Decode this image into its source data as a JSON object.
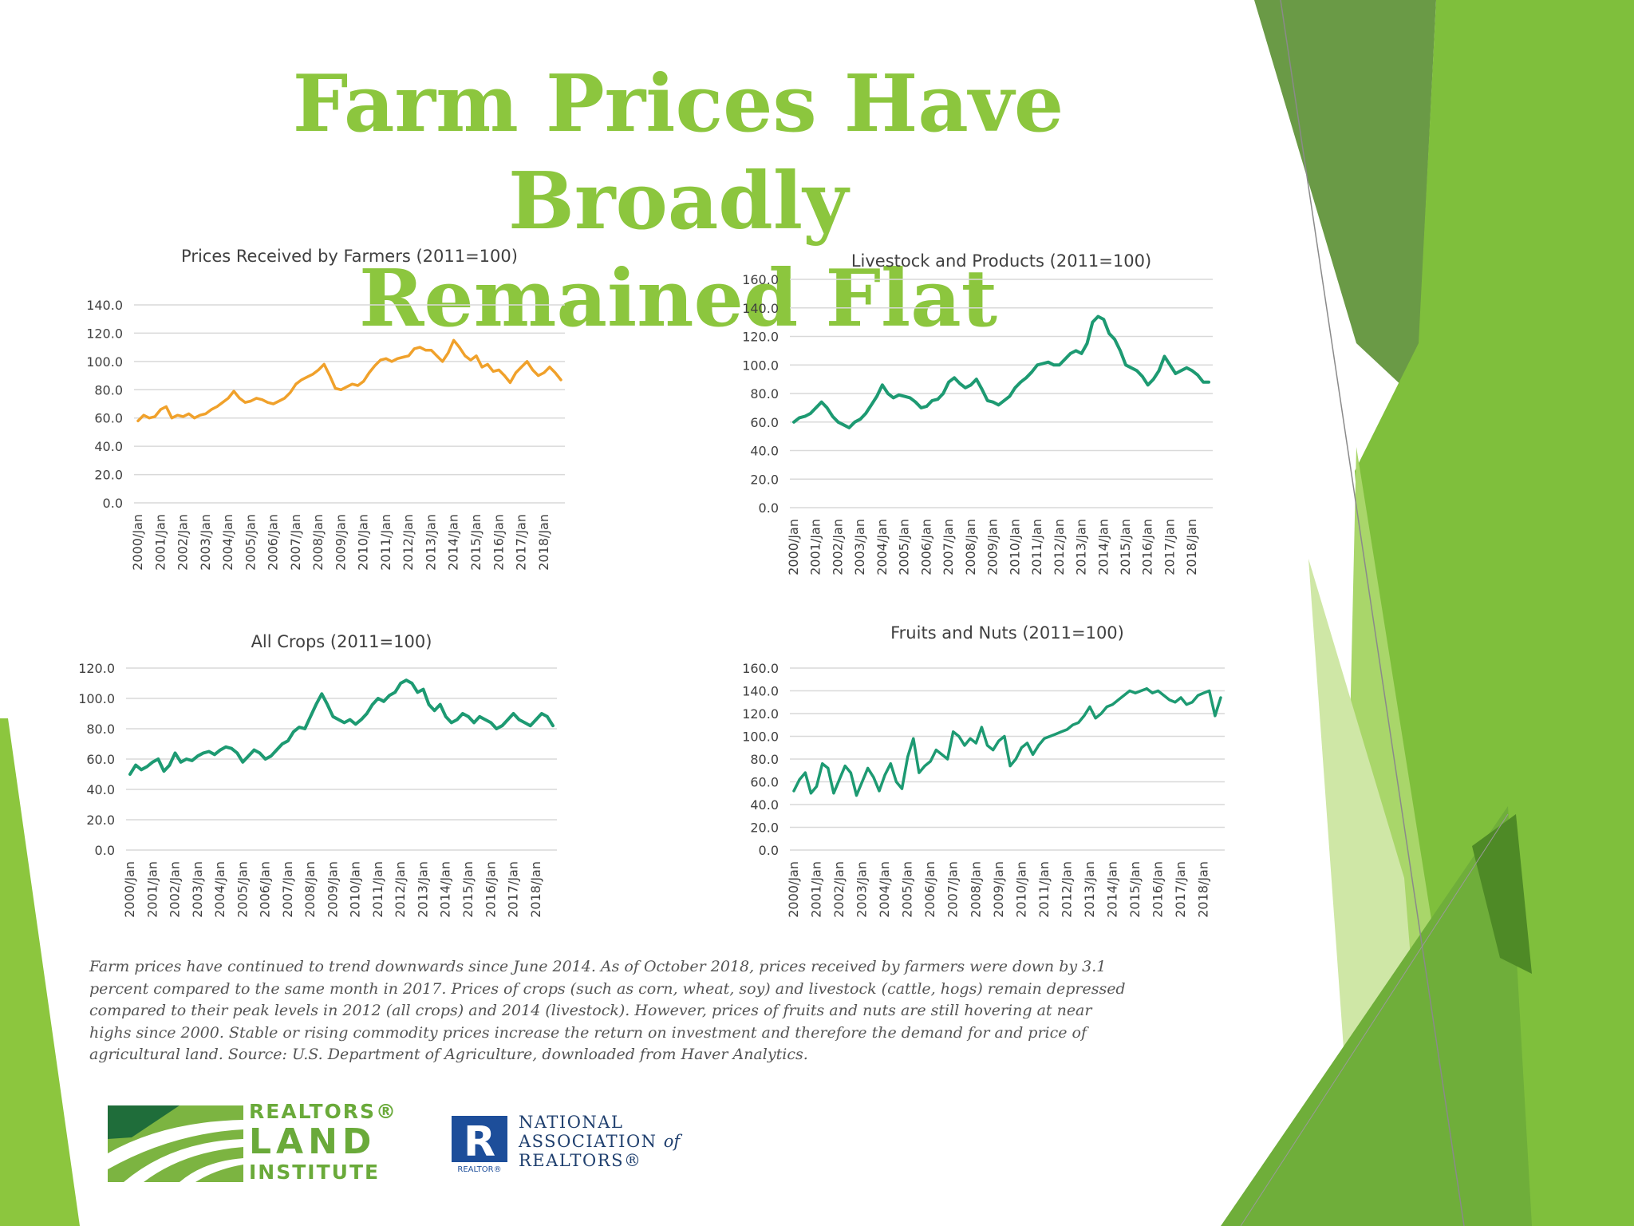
{
  "slide": {
    "title_line1": "Farm Prices Have Broadly",
    "title_line2": "Remained Flat",
    "caption": "Farm prices have continued to trend downwards since June 2014. As of October 2018, prices received by farmers were down by 3.1 percent compared to the same  month in 2017. Prices of crops (such as corn, wheat, soy) and livestock (cattle, hogs) remain depressed compared to their peak levels in 2012 (all crops) and 2014  (livestock). However, prices of fruits and nuts are still hovering at near highs since 2000. Stable or rising commodity prices increase the return on investment and  therefore the demand for and price of agricultural land. Source:  U.S. Department of Agriculture, downloaded from Haver Analytics.",
    "logo_rli": {
      "line1": "REALTORS®",
      "line2": "LAND",
      "line3": "INSTITUTE"
    },
    "logo_nar": {
      "mark": "R",
      "mark_caption": "REALTOR®",
      "line1": "NATIONAL",
      "line2": "ASSOCIATION",
      "line2_suffix": "of",
      "line3": "REALTORS®"
    },
    "colors": {
      "title": "#8cc63e",
      "orange_series": "#f0a12b",
      "green_series": "#1d9a72",
      "caption": "#555555"
    }
  },
  "chart_data": [
    {
      "type": "line",
      "title": "Prices Received by Farmers (2011=100)",
      "color": "#f0a12b",
      "ylim": [
        0,
        140
      ],
      "yticks": [
        "0.0",
        "20.0",
        "40.0",
        "60.0",
        "80.0",
        "100.0",
        "120.0",
        "140.0"
      ],
      "x_tick_labels": [
        "2000/Jan",
        "2001/Jan",
        "2002/Jan",
        "2003/Jan",
        "2004/Jan",
        "2005/Jan",
        "2006/Jan",
        "2007/Jan",
        "2008/Jan",
        "2009/Jan",
        "2010/Jan",
        "2011/Jan",
        "2012/Jan",
        "2013/Jan",
        "2014/Jan",
        "2015/Jan",
        "2016/Jan",
        "2017/Jan",
        "2018/Jan"
      ],
      "grid": true,
      "x": [
        2000.0,
        2000.25,
        2000.5,
        2000.75,
        2001.0,
        2001.25,
        2001.5,
        2001.75,
        2002.0,
        2002.25,
        2002.5,
        2002.75,
        2003.0,
        2003.25,
        2003.5,
        2003.75,
        2004.0,
        2004.25,
        2004.5,
        2004.75,
        2005.0,
        2005.25,
        2005.5,
        2005.75,
        2006.0,
        2006.25,
        2006.5,
        2006.75,
        2007.0,
        2007.25,
        2007.5,
        2007.75,
        2008.0,
        2008.25,
        2008.5,
        2008.75,
        2009.0,
        2009.25,
        2009.5,
        2009.75,
        2010.0,
        2010.25,
        2010.5,
        2010.75,
        2011.0,
        2011.25,
        2011.5,
        2011.75,
        2012.0,
        2012.25,
        2012.5,
        2012.75,
        2013.0,
        2013.25,
        2013.5,
        2013.75,
        2014.0,
        2014.25,
        2014.5,
        2014.75,
        2015.0,
        2015.25,
        2015.5,
        2015.75,
        2016.0,
        2016.25,
        2016.5,
        2016.75,
        2017.0,
        2017.25,
        2017.5,
        2017.75,
        2018.0,
        2018.25,
        2018.5,
        2018.75
      ],
      "values": [
        58,
        62,
        60,
        61,
        66,
        68,
        60,
        62,
        61,
        63,
        60,
        62,
        63,
        66,
        68,
        71,
        74,
        79,
        74,
        71,
        72,
        74,
        73,
        71,
        70,
        72,
        74,
        78,
        84,
        87,
        89,
        91,
        94,
        98,
        90,
        81,
        80,
        82,
        84,
        83,
        86,
        92,
        97,
        101,
        102,
        100,
        102,
        103,
        104,
        109,
        110,
        108,
        108,
        104,
        100,
        106,
        115,
        110,
        104,
        101,
        104,
        96,
        98,
        93,
        94,
        90,
        85,
        92,
        96,
        100,
        94,
        90,
        92,
        96,
        92,
        87
      ]
    },
    {
      "type": "line",
      "title": "Livestock and Products (2011=100)",
      "color": "#1d9a72",
      "ylim": [
        0,
        160
      ],
      "yticks": [
        "0.0",
        "20.0",
        "40.0",
        "60.0",
        "80.0",
        "100.0",
        "120.0",
        "140.0",
        "160.0"
      ],
      "x_tick_labels": [
        "2000/Jan",
        "2001/Jan",
        "2002/Jan",
        "2003/Jan",
        "2004/Jan",
        "2005/Jan",
        "2006/Jan",
        "2007/Jan",
        "2008/Jan",
        "2009/Jan",
        "2010/Jan",
        "2011/Jan",
        "2012/Jan",
        "2013/Jan",
        "2014/Jan",
        "2015/Jan",
        "2016/Jan",
        "2017/Jan",
        "2018/Jan"
      ],
      "grid": true,
      "x": [
        2000.0,
        2000.25,
        2000.5,
        2000.75,
        2001.0,
        2001.25,
        2001.5,
        2001.75,
        2002.0,
        2002.25,
        2002.5,
        2002.75,
        2003.0,
        2003.25,
        2003.5,
        2003.75,
        2004.0,
        2004.25,
        2004.5,
        2004.75,
        2005.0,
        2005.25,
        2005.5,
        2005.75,
        2006.0,
        2006.25,
        2006.5,
        2006.75,
        2007.0,
        2007.25,
        2007.5,
        2007.75,
        2008.0,
        2008.25,
        2008.5,
        2008.75,
        2009.0,
        2009.25,
        2009.5,
        2009.75,
        2010.0,
        2010.25,
        2010.5,
        2010.75,
        2011.0,
        2011.25,
        2011.5,
        2011.75,
        2012.0,
        2012.25,
        2012.5,
        2012.75,
        2013.0,
        2013.25,
        2013.5,
        2013.75,
        2014.0,
        2014.25,
        2014.5,
        2014.75,
        2015.0,
        2015.25,
        2015.5,
        2015.75,
        2016.0,
        2016.25,
        2016.5,
        2016.75,
        2017.0,
        2017.25,
        2017.5,
        2017.75,
        2018.0,
        2018.25,
        2018.5,
        2018.75
      ],
      "values": [
        60,
        63,
        64,
        66,
        70,
        74,
        70,
        64,
        60,
        58,
        56,
        60,
        62,
        66,
        72,
        78,
        86,
        80,
        77,
        79,
        78,
        77,
        74,
        70,
        71,
        75,
        76,
        80,
        88,
        91,
        87,
        84,
        86,
        90,
        83,
        75,
        74,
        72,
        75,
        78,
        84,
        88,
        91,
        95,
        100,
        101,
        102,
        100,
        100,
        104,
        108,
        110,
        108,
        115,
        130,
        134,
        132,
        122,
        118,
        110,
        100,
        98,
        96,
        92,
        86,
        90,
        96,
        106,
        100,
        94,
        96,
        98,
        96,
        93,
        88,
        88
      ]
    },
    {
      "type": "line",
      "title": "All Crops (2011=100)",
      "color": "#1d9a72",
      "ylim": [
        0,
        120
      ],
      "yticks": [
        "0.0",
        "20.0",
        "40.0",
        "60.0",
        "80.0",
        "100.0",
        "120.0"
      ],
      "x_tick_labels": [
        "2000/Jan",
        "2001/Jan",
        "2002/Jan",
        "2003/Jan",
        "2004/Jan",
        "2005/Jan",
        "2006/Jan",
        "2007/Jan",
        "2008/Jan",
        "2009/Jan",
        "2010/Jan",
        "2011/Jan",
        "2012/Jan",
        "2013/Jan",
        "2014/Jan",
        "2015/Jan",
        "2016/Jan",
        "2017/Jan",
        "2018/Jan"
      ],
      "grid": true,
      "x": [
        2000.0,
        2000.25,
        2000.5,
        2000.75,
        2001.0,
        2001.25,
        2001.5,
        2001.75,
        2002.0,
        2002.25,
        2002.5,
        2002.75,
        2003.0,
        2003.25,
        2003.5,
        2003.75,
        2004.0,
        2004.25,
        2004.5,
        2004.75,
        2005.0,
        2005.25,
        2005.5,
        2005.75,
        2006.0,
        2006.25,
        2006.5,
        2006.75,
        2007.0,
        2007.25,
        2007.5,
        2007.75,
        2008.0,
        2008.25,
        2008.5,
        2008.75,
        2009.0,
        2009.25,
        2009.5,
        2009.75,
        2010.0,
        2010.25,
        2010.5,
        2010.75,
        2011.0,
        2011.25,
        2011.5,
        2011.75,
        2012.0,
        2012.25,
        2012.5,
        2012.75,
        2013.0,
        2013.25,
        2013.5,
        2013.75,
        2014.0,
        2014.25,
        2014.5,
        2014.75,
        2015.0,
        2015.25,
        2015.5,
        2015.75,
        2016.0,
        2016.25,
        2016.5,
        2016.75,
        2017.0,
        2017.25,
        2017.5,
        2017.75,
        2018.0,
        2018.25,
        2018.5,
        2018.75
      ],
      "values": [
        50,
        56,
        53,
        55,
        58,
        60,
        52,
        56,
        64,
        58,
        60,
        59,
        62,
        64,
        65,
        63,
        66,
        68,
        67,
        64,
        58,
        62,
        66,
        64,
        60,
        62,
        66,
        70,
        72,
        78,
        81,
        80,
        88,
        96,
        103,
        96,
        88,
        86,
        84,
        86,
        83,
        86,
        90,
        96,
        100,
        98,
        102,
        104,
        110,
        112,
        110,
        104,
        106,
        96,
        92,
        96,
        88,
        84,
        86,
        90,
        88,
        84,
        88,
        86,
        84,
        80,
        82,
        86,
        90,
        86,
        84,
        82,
        86,
        90,
        88,
        82
      ]
    },
    {
      "type": "line",
      "title": "Fruits and Nuts (2011=100)",
      "color": "#1d9a72",
      "ylim": [
        0,
        160
      ],
      "yticks": [
        "0.0",
        "20.0",
        "40.0",
        "60.0",
        "80.0",
        "100.0",
        "120.0",
        "140.0",
        "160.0"
      ],
      "x_tick_labels": [
        "2000/Jan",
        "2001/Jan",
        "2002/Jan",
        "2003/Jan",
        "2004/Jan",
        "2005/Jan",
        "2006/Jan",
        "2007/Jan",
        "2008/Jan",
        "2009/Jan",
        "2010/Jan",
        "2011/Jan",
        "2012/Jan",
        "2013/Jan",
        "2014/Jan",
        "2015/Jan",
        "2016/Jan",
        "2017/Jan",
        "2018/Jan"
      ],
      "grid": true,
      "x": [
        2000.0,
        2000.25,
        2000.5,
        2000.75,
        2001.0,
        2001.25,
        2001.5,
        2001.75,
        2002.0,
        2002.25,
        2002.5,
        2002.75,
        2003.0,
        2003.25,
        2003.5,
        2003.75,
        2004.0,
        2004.25,
        2004.5,
        2004.75,
        2005.0,
        2005.25,
        2005.5,
        2005.75,
        2006.0,
        2006.25,
        2006.5,
        2006.75,
        2007.0,
        2007.25,
        2007.5,
        2007.75,
        2008.0,
        2008.25,
        2008.5,
        2008.75,
        2009.0,
        2009.25,
        2009.5,
        2009.75,
        2010.0,
        2010.25,
        2010.5,
        2010.75,
        2011.0,
        2011.25,
        2011.5,
        2011.75,
        2012.0,
        2012.25,
        2012.5,
        2012.75,
        2013.0,
        2013.25,
        2013.5,
        2013.75,
        2014.0,
        2014.25,
        2014.5,
        2014.75,
        2015.0,
        2015.25,
        2015.5,
        2015.75,
        2016.0,
        2016.25,
        2016.5,
        2016.75,
        2017.0,
        2017.25,
        2017.5,
        2017.75,
        2018.0,
        2018.25,
        2018.5,
        2018.75
      ],
      "values": [
        52,
        62,
        68,
        50,
        56,
        76,
        72,
        50,
        62,
        74,
        68,
        48,
        60,
        72,
        64,
        52,
        66,
        76,
        60,
        54,
        82,
        98,
        68,
        74,
        78,
        88,
        84,
        80,
        104,
        100,
        92,
        98,
        94,
        108,
        92,
        88,
        96,
        100,
        74,
        80,
        90,
        94,
        84,
        92,
        98,
        100,
        102,
        104,
        106,
        110,
        112,
        118,
        126,
        116,
        120,
        126,
        128,
        132,
        136,
        140,
        138,
        140,
        142,
        138,
        140,
        136,
        132,
        130,
        134,
        128,
        130,
        136,
        138,
        140,
        118,
        134
      ]
    }
  ]
}
